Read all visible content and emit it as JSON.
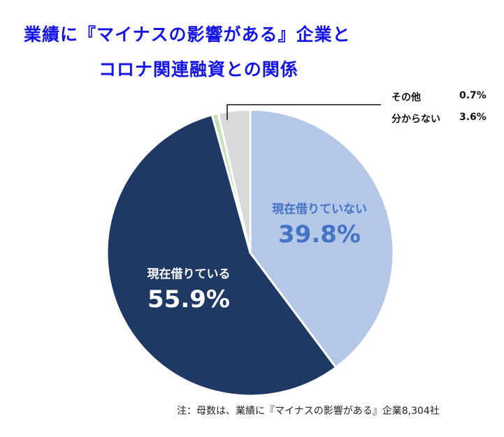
{
  "title": {
    "line1": "業績に『マイナスの影響がある』企業と",
    "line2": "コロナ関連融資との関係",
    "color": "#1414e6"
  },
  "note": "注：母数は、業績に『マイナスの影響がある』企業8,304社",
  "slices": [
    {
      "label": "現在借りていない",
      "value": "39.8%",
      "color": "#b4c7e7",
      "text_color": "#4472c4"
    },
    {
      "label": "現在借りている",
      "value": "55.9%",
      "color": "#203864",
      "text_color": "#ffffff"
    },
    {
      "label": "その他",
      "value": "0.7%",
      "color": "#c5e0b4"
    },
    {
      "label": "分からない",
      "value": "3.6%",
      "color": "#d9d9d9"
    }
  ],
  "chart_data": {
    "type": "pie",
    "title": "業績に『マイナスの影響がある』企業とコロナ関連融資との関係",
    "categories": [
      "現在借りていない",
      "現在借りている",
      "その他",
      "分からない"
    ],
    "values": [
      39.8,
      55.9,
      0.7,
      3.6
    ],
    "colors": [
      "#b4c7e7",
      "#203864",
      "#c5e0b4",
      "#d9d9d9"
    ],
    "start_angle": "12 o'clock, clockwise",
    "annotations": [
      "その他 0.7%",
      "分からない 3.6%"
    ],
    "footnote": "注：母数は、業績に『マイナスの影響がある』企業8,304社"
  }
}
